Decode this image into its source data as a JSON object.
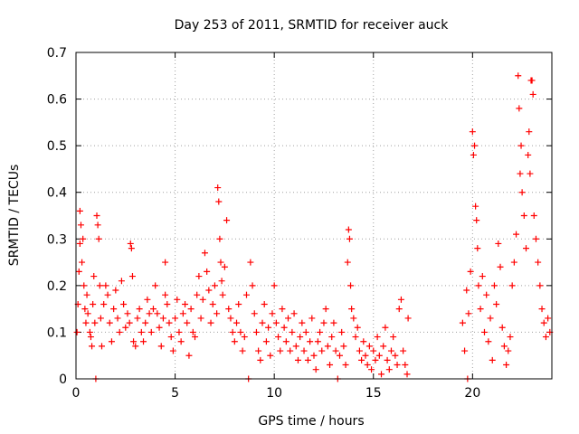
{
  "chart_data": {
    "type": "scatter",
    "title": "Day 253 of 2011, SRMTID for receiver auck",
    "xlabel": "GPS time / hours",
    "ylabel": "SRMTID / TECUs",
    "xlim": [
      0,
      24
    ],
    "ylim": [
      0,
      0.7
    ],
    "x_ticks": [
      0,
      5,
      10,
      15,
      20
    ],
    "y_ticks": [
      0,
      0.1,
      0.2,
      0.3,
      0.4,
      0.5,
      0.6,
      0.7
    ],
    "x_tick_labels": [
      "0",
      "5",
      "10",
      "15",
      "20"
    ],
    "y_tick_labels": [
      "0",
      "0.1",
      "0.2",
      "0.3",
      "0.4",
      "0.5",
      "0.6",
      "0.7"
    ],
    "grid": true,
    "marker": "+",
    "color": "#ff0000",
    "series": [
      {
        "points": [
          [
            0.05,
            0.1
          ],
          [
            0.1,
            0.16
          ],
          [
            0.15,
            0.23
          ],
          [
            0.2,
            0.29
          ],
          [
            0.2,
            0.36
          ],
          [
            0.25,
            0.33
          ],
          [
            0.3,
            0.25
          ],
          [
            0.35,
            0.3
          ],
          [
            0.4,
            0.2
          ],
          [
            0.45,
            0.15
          ],
          [
            0.5,
            0.12
          ],
          [
            0.55,
            0.18
          ],
          [
            0.6,
            0.14
          ],
          [
            0.7,
            0.1
          ],
          [
            0.75,
            0.09
          ],
          [
            0.8,
            0.07
          ],
          [
            0.85,
            0.16
          ],
          [
            0.9,
            0.22
          ],
          [
            0.95,
            0.12
          ],
          [
            1.0,
            0.0
          ],
          [
            1.05,
            0.35
          ],
          [
            1.1,
            0.33
          ],
          [
            1.15,
            0.3
          ],
          [
            1.2,
            0.2
          ],
          [
            1.25,
            0.13
          ],
          [
            1.3,
            0.07
          ],
          [
            1.4,
            0.16
          ],
          [
            1.5,
            0.2
          ],
          [
            1.6,
            0.18
          ],
          [
            1.7,
            0.12
          ],
          [
            1.8,
            0.08
          ],
          [
            1.9,
            0.15
          ],
          [
            2.0,
            0.19
          ],
          [
            2.1,
            0.13
          ],
          [
            2.2,
            0.1
          ],
          [
            2.3,
            0.21
          ],
          [
            2.4,
            0.16
          ],
          [
            2.5,
            0.11
          ],
          [
            2.6,
            0.14
          ],
          [
            2.7,
            0.12
          ],
          [
            2.75,
            0.29
          ],
          [
            2.8,
            0.28
          ],
          [
            2.85,
            0.22
          ],
          [
            2.9,
            0.08
          ],
          [
            3.0,
            0.07
          ],
          [
            3.1,
            0.13
          ],
          [
            3.2,
            0.15
          ],
          [
            3.3,
            0.1
          ],
          [
            3.4,
            0.08
          ],
          [
            3.5,
            0.12
          ],
          [
            3.6,
            0.17
          ],
          [
            3.7,
            0.14
          ],
          [
            3.8,
            0.1
          ],
          [
            3.9,
            0.15
          ],
          [
            4.0,
            0.2
          ],
          [
            4.1,
            0.14
          ],
          [
            4.2,
            0.11
          ],
          [
            4.3,
            0.07
          ],
          [
            4.4,
            0.13
          ],
          [
            4.5,
            0.18
          ],
          [
            4.5,
            0.25
          ],
          [
            4.6,
            0.16
          ],
          [
            4.7,
            0.12
          ],
          [
            4.8,
            0.09
          ],
          [
            4.9,
            0.06
          ],
          [
            5.0,
            0.13
          ],
          [
            5.1,
            0.17
          ],
          [
            5.2,
            0.1
          ],
          [
            5.3,
            0.08
          ],
          [
            5.4,
            0.14
          ],
          [
            5.5,
            0.16
          ],
          [
            5.6,
            0.12
          ],
          [
            5.7,
            0.05
          ],
          [
            5.8,
            0.15
          ],
          [
            5.9,
            0.1
          ],
          [
            6.0,
            0.09
          ],
          [
            6.1,
            0.18
          ],
          [
            6.2,
            0.22
          ],
          [
            6.3,
            0.13
          ],
          [
            6.4,
            0.17
          ],
          [
            6.5,
            0.27
          ],
          [
            6.6,
            0.23
          ],
          [
            6.7,
            0.19
          ],
          [
            6.8,
            0.12
          ],
          [
            6.9,
            0.16
          ],
          [
            7.0,
            0.2
          ],
          [
            7.1,
            0.14
          ],
          [
            7.15,
            0.41
          ],
          [
            7.2,
            0.38
          ],
          [
            7.25,
            0.3
          ],
          [
            7.3,
            0.25
          ],
          [
            7.35,
            0.21
          ],
          [
            7.4,
            0.18
          ],
          [
            7.5,
            0.24
          ],
          [
            7.6,
            0.34
          ],
          [
            7.7,
            0.15
          ],
          [
            7.8,
            0.13
          ],
          [
            7.9,
            0.1
          ],
          [
            8.0,
            0.08
          ],
          [
            8.1,
            0.12
          ],
          [
            8.2,
            0.16
          ],
          [
            8.3,
            0.1
          ],
          [
            8.4,
            0.06
          ],
          [
            8.5,
            0.09
          ],
          [
            8.6,
            0.18
          ],
          [
            8.7,
            0.0
          ],
          [
            8.8,
            0.25
          ],
          [
            8.9,
            0.2
          ],
          [
            9.0,
            0.14
          ],
          [
            9.1,
            0.1
          ],
          [
            9.2,
            0.06
          ],
          [
            9.3,
            0.04
          ],
          [
            9.4,
            0.12
          ],
          [
            9.5,
            0.16
          ],
          [
            9.6,
            0.08
          ],
          [
            9.7,
            0.11
          ],
          [
            9.8,
            0.05
          ],
          [
            9.9,
            0.14
          ],
          [
            10.0,
            0.2
          ],
          [
            10.1,
            0.12
          ],
          [
            10.2,
            0.09
          ],
          [
            10.3,
            0.06
          ],
          [
            10.4,
            0.15
          ],
          [
            10.5,
            0.11
          ],
          [
            10.6,
            0.08
          ],
          [
            10.7,
            0.13
          ],
          [
            10.8,
            0.06
          ],
          [
            10.9,
            0.1
          ],
          [
            11.0,
            0.14
          ],
          [
            11.1,
            0.07
          ],
          [
            11.2,
            0.04
          ],
          [
            11.3,
            0.09
          ],
          [
            11.4,
            0.12
          ],
          [
            11.5,
            0.06
          ],
          [
            11.6,
            0.1
          ],
          [
            11.7,
            0.04
          ],
          [
            11.8,
            0.08
          ],
          [
            11.9,
            0.13
          ],
          [
            12.0,
            0.05
          ],
          [
            12.1,
            0.02
          ],
          [
            12.2,
            0.08
          ],
          [
            12.3,
            0.1
          ],
          [
            12.4,
            0.06
          ],
          [
            12.5,
            0.12
          ],
          [
            12.6,
            0.15
          ],
          [
            12.7,
            0.07
          ],
          [
            12.8,
            0.03
          ],
          [
            12.9,
            0.09
          ],
          [
            13.0,
            0.12
          ],
          [
            13.1,
            0.06
          ],
          [
            13.2,
            0.0
          ],
          [
            13.3,
            0.05
          ],
          [
            13.4,
            0.1
          ],
          [
            13.5,
            0.07
          ],
          [
            13.6,
            0.03
          ],
          [
            13.7,
            0.25
          ],
          [
            13.75,
            0.32
          ],
          [
            13.8,
            0.3
          ],
          [
            13.85,
            0.2
          ],
          [
            13.9,
            0.15
          ],
          [
            14.0,
            0.13
          ],
          [
            14.1,
            0.09
          ],
          [
            14.2,
            0.11
          ],
          [
            14.3,
            0.06
          ],
          [
            14.4,
            0.04
          ],
          [
            14.5,
            0.08
          ],
          [
            14.6,
            0.05
          ],
          [
            14.7,
            0.03
          ],
          [
            14.8,
            0.07
          ],
          [
            14.9,
            0.02
          ],
          [
            15.0,
            0.06
          ],
          [
            15.1,
            0.04
          ],
          [
            15.2,
            0.09
          ],
          [
            15.3,
            0.05
          ],
          [
            15.4,
            0.01
          ],
          [
            15.5,
            0.07
          ],
          [
            15.6,
            0.11
          ],
          [
            15.7,
            0.04
          ],
          [
            15.8,
            0.02
          ],
          [
            15.9,
            0.06
          ],
          [
            16.0,
            0.09
          ],
          [
            16.1,
            0.05
          ],
          [
            16.2,
            0.03
          ],
          [
            16.3,
            0.15
          ],
          [
            16.4,
            0.17
          ],
          [
            16.5,
            0.06
          ],
          [
            16.6,
            0.03
          ],
          [
            16.7,
            0.01
          ],
          [
            16.75,
            0.13
          ],
          [
            19.5,
            0.12
          ],
          [
            19.6,
            0.06
          ],
          [
            19.7,
            0.19
          ],
          [
            19.75,
            0.0
          ],
          [
            19.8,
            0.14
          ],
          [
            19.9,
            0.23
          ],
          [
            20.0,
            0.53
          ],
          [
            20.05,
            0.48
          ],
          [
            20.1,
            0.5
          ],
          [
            20.15,
            0.37
          ],
          [
            20.2,
            0.34
          ],
          [
            20.25,
            0.28
          ],
          [
            20.3,
            0.2
          ],
          [
            20.4,
            0.15
          ],
          [
            20.5,
            0.22
          ],
          [
            20.6,
            0.1
          ],
          [
            20.7,
            0.18
          ],
          [
            20.8,
            0.08
          ],
          [
            20.9,
            0.13
          ],
          [
            21.0,
            0.04
          ],
          [
            21.1,
            0.2
          ],
          [
            21.2,
            0.16
          ],
          [
            21.3,
            0.29
          ],
          [
            21.4,
            0.24
          ],
          [
            21.5,
            0.11
          ],
          [
            21.6,
            0.07
          ],
          [
            21.7,
            0.03
          ],
          [
            21.8,
            0.06
          ],
          [
            21.9,
            0.09
          ],
          [
            22.0,
            0.2
          ],
          [
            22.1,
            0.25
          ],
          [
            22.2,
            0.31
          ],
          [
            22.3,
            0.65
          ],
          [
            22.35,
            0.58
          ],
          [
            22.4,
            0.44
          ],
          [
            22.45,
            0.5
          ],
          [
            22.5,
            0.4
          ],
          [
            22.6,
            0.35
          ],
          [
            22.7,
            0.28
          ],
          [
            22.8,
            0.48
          ],
          [
            22.85,
            0.53
          ],
          [
            22.9,
            0.44
          ],
          [
            22.95,
            0.64
          ],
          [
            23.0,
            0.64
          ],
          [
            23.05,
            0.61
          ],
          [
            23.1,
            0.35
          ],
          [
            23.2,
            0.3
          ],
          [
            23.3,
            0.25
          ],
          [
            23.4,
            0.2
          ],
          [
            23.5,
            0.15
          ],
          [
            23.6,
            0.12
          ],
          [
            23.7,
            0.09
          ],
          [
            23.8,
            0.13
          ],
          [
            23.9,
            0.1
          ]
        ]
      }
    ]
  }
}
